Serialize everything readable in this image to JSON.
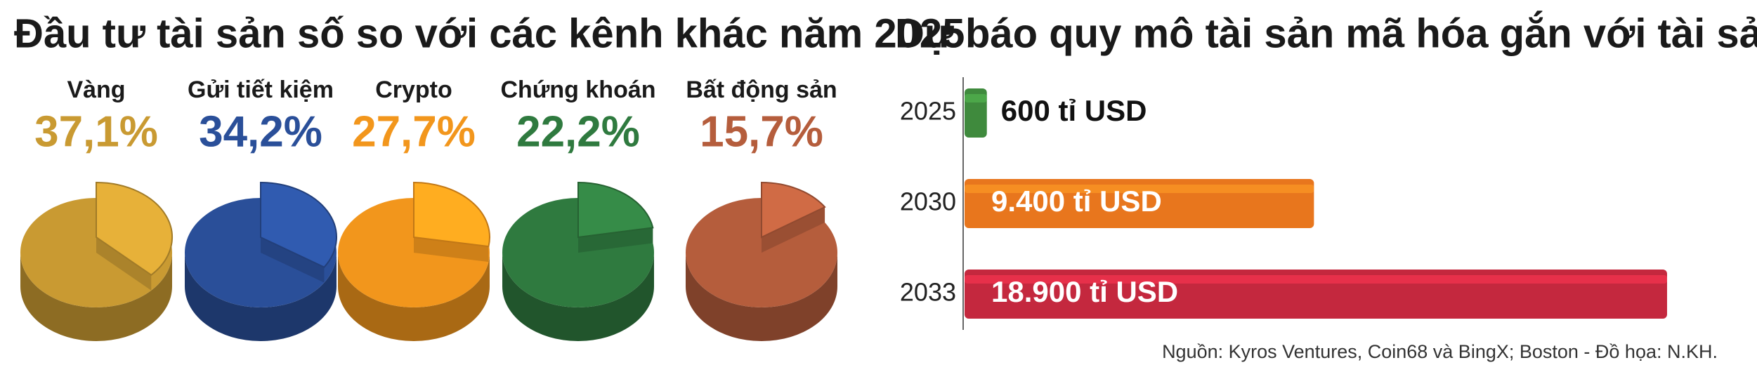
{
  "chart_data": [
    {
      "type": "pie",
      "title": "Đầu tư tài sản số so với các kênh khác năm 2025",
      "categories": [
        "Vàng",
        "Gửi tiết kiệm",
        "Crypto",
        "Chứng khoán",
        "Bất động sản"
      ],
      "values": [
        37.1,
        34.2,
        27.7,
        22.2,
        15.7
      ],
      "value_labels": [
        "37,1%",
        "34,2%",
        "27,7%",
        "22,2%",
        "15,7%"
      ],
      "colors": [
        "#c99a32",
        "#2a4f99",
        "#f2961c",
        "#2f7a3f",
        "#b55d3c"
      ]
    },
    {
      "type": "bar",
      "orientation": "horizontal",
      "title": "Dự báo quy mô tài sản mã hóa gắn với tài sản thực",
      "categories": [
        "2025",
        "2030",
        "2033"
      ],
      "values": [
        600,
        9400,
        18900
      ],
      "value_labels": [
        "600 tỉ USD",
        "9.400 tỉ USD",
        "18.900 tỉ USD"
      ],
      "colors": [
        "#3f8a3d",
        "#e8761d",
        "#c4283e"
      ]
    }
  ],
  "source": "Nguồn: Kyros Ventures, Coin68 và BingX; Boston - Đồ họa: N.KH."
}
